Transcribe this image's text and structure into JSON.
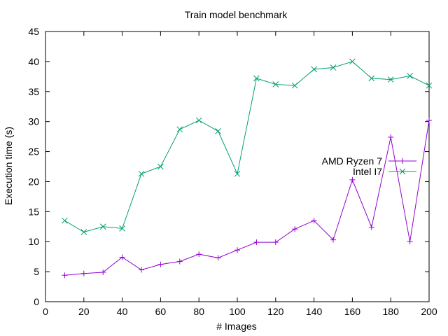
{
  "chart_data": {
    "type": "line",
    "title": "Train model benchmark",
    "xlabel": "# Images",
    "ylabel": "Execution time (s)",
    "xlim": [
      0,
      200
    ],
    "ylim": [
      0,
      45
    ],
    "xticks": [
      0,
      20,
      40,
      60,
      80,
      100,
      120,
      140,
      160,
      180,
      200
    ],
    "yticks": [
      0,
      5,
      10,
      15,
      20,
      25,
      30,
      35,
      40,
      45
    ],
    "grid": false,
    "legend_position": "right",
    "x": [
      10,
      20,
      30,
      40,
      50,
      60,
      70,
      80,
      90,
      100,
      110,
      120,
      130,
      140,
      150,
      160,
      170,
      180,
      190,
      200
    ],
    "series": [
      {
        "name": "AMD Ryzen 7",
        "color": "#9400d3",
        "marker": "plus",
        "values": [
          4.4,
          4.7,
          4.9,
          7.4,
          5.3,
          6.2,
          6.7,
          7.9,
          7.3,
          8.6,
          9.9,
          9.9,
          12.1,
          13.5,
          10.3,
          20.3,
          12.4,
          27.4,
          10.0,
          30.2
        ]
      },
      {
        "name": "Intel I7",
        "color": "#009e73",
        "marker": "cross",
        "values": [
          13.5,
          11.6,
          12.5,
          12.2,
          21.3,
          22.5,
          28.7,
          30.2,
          28.4,
          21.3,
          37.2,
          36.2,
          36.0,
          38.7,
          39.0,
          40.0,
          37.2,
          37.0,
          37.6,
          36.0
        ]
      }
    ]
  }
}
